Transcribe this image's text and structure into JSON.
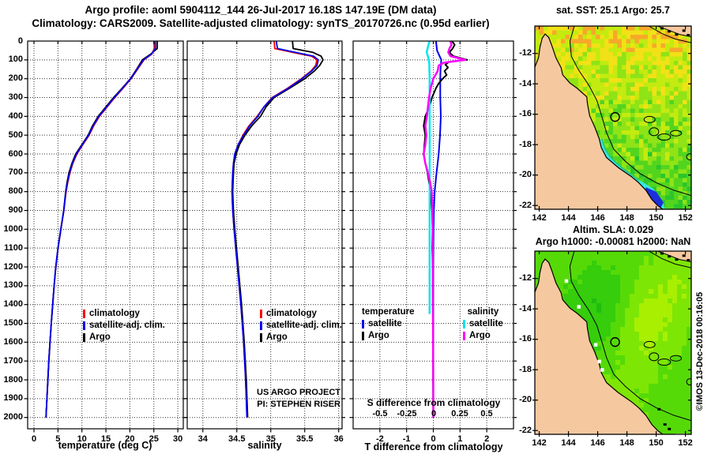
{
  "header": {
    "line1": "Argo profile: aoml 5904112_144 26-Jul-2017 16.18S 147.19E (DM data)",
    "line2": "Climatology: CARS2009. Satellite-adjusted climatology: synTS_20170726.nc (0.95d earlier)"
  },
  "credit": "©IMOS 13-Dec-2018 00:16:05",
  "annotations": {
    "project_line1": "US ARGO PROJECT",
    "project_line2": "PI: STEPHEN RISER"
  },
  "colors": {
    "climatology": "#ff0000",
    "satellite_adjusted": "#0000ee",
    "argo": "#000000",
    "satellite_s": "#00e5ee",
    "argo_s": "#ff00ff",
    "land": "#f6c8a0",
    "marker_outline": "#000000",
    "grid": "#333333"
  },
  "chart_data": {
    "temperature_profile": {
      "type": "line",
      "orientation": "depth-profile",
      "xlabel": "temperature (deg C)",
      "xlim": [
        -1.32,
        31.14
      ],
      "xticks": [
        0,
        5,
        10,
        15,
        20,
        25,
        30
      ],
      "ylim": [
        0,
        2060
      ],
      "depth_ticks_m": [
        0,
        100,
        200,
        300,
        400,
        500,
        600,
        700,
        800,
        900,
        1000,
        1100,
        1200,
        1300,
        1400,
        1500,
        1600,
        1700,
        1800,
        1900,
        2000
      ],
      "grid": true,
      "legend": [
        {
          "label": "climatology",
          "color": "#ff0000"
        },
        {
          "label": "satellite-adj. clim.",
          "color": "#0000ee"
        },
        {
          "label": "Argo",
          "color": "#000000"
        }
      ],
      "depths": [
        0,
        40,
        70,
        100,
        150,
        200,
        250,
        300,
        350,
        400,
        450,
        500,
        550,
        600,
        650,
        700,
        750,
        800,
        850,
        900,
        1000,
        1100,
        1200,
        1300,
        1400,
        1500,
        1600,
        1700,
        1800,
        1900,
        2000
      ],
      "series": [
        {
          "name": "climatology",
          "color": "#ff0000",
          "width": 1.8,
          "values": [
            25.05,
            25.1,
            24.55,
            22.95,
            21.6,
            20.25,
            18.6,
            16.85,
            15.25,
            13.65,
            12.45,
            11.5,
            10.2,
            8.95,
            8.1,
            7.5,
            7.05,
            6.7,
            6.45,
            6.25,
            5.62,
            5.02,
            4.56,
            4.2,
            3.9,
            3.6,
            3.35,
            3.1,
            2.9,
            2.7,
            2.5
          ]
        },
        {
          "name": "Argo",
          "color": "#000000",
          "width": 1.8,
          "values": [
            25.7,
            25.7,
            24.3,
            22.6,
            21.4,
            20.1,
            18.4,
            16.6,
            15.0,
            13.4,
            12.2,
            11.3,
            10.0,
            8.7,
            7.9,
            7.3,
            6.9,
            6.6,
            6.4,
            6.2,
            5.6,
            5.0,
            4.55,
            4.2,
            3.9,
            3.6,
            3.35,
            3.1,
            2.9,
            2.7,
            2.5
          ]
        },
        {
          "name": "satellite-adj. clim.",
          "color": "#0000ee",
          "width": 1.8,
          "values": [
            25.3,
            25.32,
            24.45,
            22.85,
            21.5,
            20.18,
            18.5,
            16.75,
            15.15,
            13.55,
            12.35,
            11.42,
            10.12,
            8.85,
            8.02,
            7.42,
            6.98,
            6.65,
            6.42,
            6.22,
            5.6,
            5.0,
            4.55,
            4.2,
            3.9,
            3.6,
            3.35,
            3.1,
            2.9,
            2.7,
            2.5
          ]
        }
      ]
    },
    "salinity_profile": {
      "type": "line",
      "orientation": "depth-profile",
      "xlabel": "salinity",
      "xlim": [
        33.77,
        36.05
      ],
      "xticks": [
        34,
        34.5,
        35,
        35.5,
        36
      ],
      "ylim": [
        0,
        2060
      ],
      "grid": true,
      "legend": [
        {
          "label": "climatology",
          "color": "#ff0000"
        },
        {
          "label": "satellite-adj. clim.",
          "color": "#0000ee"
        },
        {
          "label": "Argo",
          "color": "#000000"
        }
      ],
      "depths": [
        0,
        40,
        60,
        80,
        100,
        130,
        160,
        200,
        250,
        300,
        350,
        400,
        450,
        500,
        550,
        600,
        650,
        700,
        800,
        900,
        1000,
        1200,
        1400,
        1600,
        1800,
        2000
      ],
      "series": [
        {
          "name": "climatology",
          "color": "#ff0000",
          "width": 1.8,
          "values": [
            35.05,
            35.06,
            35.32,
            35.6,
            35.68,
            35.66,
            35.59,
            35.45,
            35.25,
            35.02,
            34.9,
            34.8,
            34.68,
            34.59,
            34.52,
            34.47,
            34.45,
            34.44,
            34.43,
            34.44,
            34.46,
            34.51,
            34.56,
            34.6,
            34.63,
            34.65
          ]
        },
        {
          "name": "Argo",
          "color": "#000000",
          "width": 1.8,
          "values": [
            35.32,
            35.33,
            35.62,
            35.74,
            35.77,
            35.72,
            35.64,
            35.5,
            35.28,
            35.05,
            34.93,
            34.85,
            34.72,
            34.62,
            34.54,
            34.49,
            34.46,
            34.45,
            34.44,
            34.45,
            34.47,
            34.52,
            34.57,
            34.61,
            34.64,
            34.66
          ]
        },
        {
          "name": "satellite-adj. clim.",
          "color": "#0000ee",
          "width": 1.8,
          "values": [
            35.08,
            35.1,
            35.36,
            35.63,
            35.7,
            35.68,
            35.6,
            35.46,
            35.26,
            35.03,
            34.9,
            34.81,
            34.69,
            34.6,
            34.52,
            34.47,
            34.45,
            34.44,
            34.43,
            34.44,
            34.46,
            34.51,
            34.56,
            34.6,
            34.63,
            34.65
          ]
        }
      ]
    },
    "difference_profile": {
      "type": "line",
      "orientation": "depth-profile",
      "xlabel": "T difference from climatology",
      "xlabel2": "S difference from climatology",
      "xlim": [
        -3,
        3
      ],
      "xticks": [
        -2,
        -1,
        0,
        1,
        2
      ],
      "ylim": [
        0,
        2060
      ],
      "grid": true,
      "s_axis_ticklabels": [
        "-0.5",
        "-0.25",
        "0",
        "0.25",
        "0.5"
      ],
      "s_to_t_scale": 4,
      "legend_temperature": {
        "header": "temperature",
        "items": [
          {
            "label": "satellite",
            "color": "#0000ee"
          },
          {
            "label": "Argo",
            "color": "#000000"
          }
        ]
      },
      "legend_salinity": {
        "header": "salinity",
        "items": [
          {
            "label": "satellite",
            "color": "#00e5ee"
          },
          {
            "label": "Argo",
            "color": "#ff00ff"
          }
        ]
      },
      "series": [
        {
          "name": "T satellite",
          "axis": "T",
          "color": "#0000ee",
          "width": 2,
          "depths": [
            0,
            50,
            100,
            150,
            200,
            300,
            400,
            500,
            600,
            700,
            800,
            900,
            1000,
            1200,
            1400,
            1600,
            1800,
            2000
          ],
          "values": [
            0.1,
            0.14,
            0.3,
            0.27,
            0.26,
            0.26,
            0.28,
            0.25,
            0.2,
            0.12,
            0.05,
            0.02,
            0.01,
            0.0,
            0.0,
            0.0,
            0.0,
            0.0
          ]
        },
        {
          "name": "T Argo",
          "axis": "T",
          "color": "#000000",
          "width": 2,
          "depths": [
            0,
            20,
            40,
            60,
            80,
            100,
            110,
            125,
            140,
            160,
            180,
            200,
            225,
            250,
            300,
            350,
            400,
            450,
            500,
            550,
            600,
            650,
            700,
            750,
            800,
            900,
            1000,
            1100,
            1200,
            1400,
            1600,
            1800,
            2000
          ],
          "values": [
            0.7,
            0.8,
            0.72,
            0.6,
            0.75,
            1.27,
            0.6,
            0.45,
            0.55,
            0.42,
            0.5,
            0.35,
            0.2,
            0.1,
            -0.05,
            -0.15,
            -0.3,
            -0.36,
            -0.3,
            -0.33,
            -0.36,
            -0.3,
            -0.22,
            -0.16,
            -0.1,
            -0.05,
            -0.03,
            -0.04,
            -0.02,
            -0.02,
            -0.01,
            -0.01,
            0.0
          ]
        },
        {
          "name": "S satellite",
          "axis": "S",
          "color": "#00e5ee",
          "width": 2.5,
          "depths": [
            0,
            30,
            60,
            90,
            120,
            200,
            400,
            700,
            1000,
            1250,
            1450
          ],
          "values": [
            -0.035,
            -0.05,
            -0.062,
            -0.045,
            -0.038,
            -0.035,
            -0.034,
            -0.034,
            -0.035,
            -0.035,
            -0.035
          ]
        },
        {
          "name": "S Argo",
          "axis": "S",
          "color": "#ff00ff",
          "width": 2.5,
          "depths": [
            0,
            20,
            40,
            60,
            80,
            100,
            115,
            130,
            160,
            200,
            250,
            300,
            350,
            400,
            450,
            500,
            550,
            600,
            650,
            700,
            750,
            800,
            900,
            1000,
            1200,
            1400,
            1600,
            1800,
            2000
          ],
          "values": [
            0.16,
            0.17,
            0.15,
            0.14,
            0.16,
            0.3,
            0.1,
            0.05,
            0.04,
            0.0,
            -0.025,
            -0.04,
            -0.05,
            -0.06,
            -0.075,
            -0.065,
            -0.075,
            -0.09,
            -0.075,
            -0.05,
            -0.03,
            -0.015,
            -0.008,
            -0.005,
            -0.004,
            -0.003,
            -0.002,
            -0.001,
            0.0
          ]
        }
      ]
    },
    "sst_map": {
      "type": "heatmap",
      "style": "speckled",
      "title": "sat. SST: 25.1 Argo: 25.7",
      "xticks": [
        142,
        144,
        146,
        148,
        150,
        152
      ],
      "yticks": [
        -12,
        -14,
        -16,
        -18,
        -20,
        -22
      ],
      "lon_range": [
        141.7,
        152.4
      ],
      "lat_range": [
        -22.25,
        -10.2
      ],
      "marker": {
        "lon": 147.19,
        "lat": -16.18
      },
      "palette": [
        "#f7a82a",
        "#f2e116",
        "#c3eb10",
        "#8fe316",
        "#52d51f",
        "#2ac62c",
        "#23bb58"
      ],
      "cool_band_color": "#38e8e4",
      "cold_patch_color": "#1c2fd9",
      "land_color": "#f6c8a0"
    },
    "sla_map": {
      "type": "heatmap",
      "style": "smooth",
      "title_line1": "Altim. SLA: 0.029",
      "title_line2": "Argo h1000: -0.00081 h2000: NaN",
      "xticks": [
        142,
        144,
        146,
        148,
        150,
        152
      ],
      "yticks": [
        -12,
        -14,
        -16,
        -18,
        -20,
        -22
      ],
      "lon_range": [
        141.7,
        152.4
      ],
      "lat_range": [
        -22.25,
        -10.2
      ],
      "marker": {
        "lon": 147.19,
        "lat": -16.18
      },
      "palette": [
        "#12ad12",
        "#1fbd10",
        "#35cd0c",
        "#55da08",
        "#7ee604",
        "#a8ef02",
        "#d6f600"
      ],
      "land_color": "#f6c8a0"
    }
  }
}
